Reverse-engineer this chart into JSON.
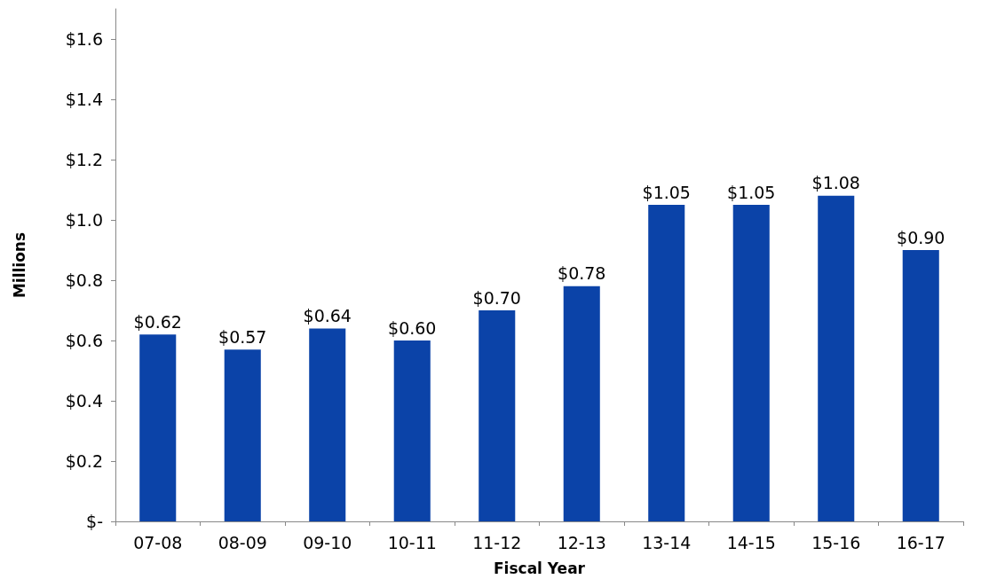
{
  "chart_data": {
    "type": "bar",
    "xlabel": "Fiscal Year",
    "ylabel": "Millions",
    "categories": [
      "07-08",
      "08-09",
      "09-10",
      "10-11",
      "11-12",
      "12-13",
      "13-14",
      "14-15",
      "15-16",
      "16-17"
    ],
    "values": [
      0.62,
      0.57,
      0.64,
      0.6,
      0.7,
      0.78,
      1.05,
      1.05,
      1.08,
      0.9
    ],
    "value_labels": [
      "$0.62",
      "$0.57",
      "$0.64",
      "$0.60",
      "$0.70",
      "$0.78",
      "$1.05",
      "$1.05",
      "$1.08",
      "$0.90"
    ],
    "color": "#0b43a8",
    "ylim": [
      0,
      1.7
    ],
    "yticks": [
      {
        "value": 0,
        "label": "$-"
      },
      {
        "value": 0.2,
        "label": "$0.2"
      },
      {
        "value": 0.4,
        "label": "$0.4"
      },
      {
        "value": 0.6,
        "label": "$0.6"
      },
      {
        "value": 0.8,
        "label": "$0.8"
      },
      {
        "value": 1.0,
        "label": "$1.0"
      },
      {
        "value": 1.2,
        "label": "$1.2"
      },
      {
        "value": 1.4,
        "label": "$1.4"
      },
      {
        "value": 1.6,
        "label": "$1.6"
      }
    ],
    "grid": false
  }
}
